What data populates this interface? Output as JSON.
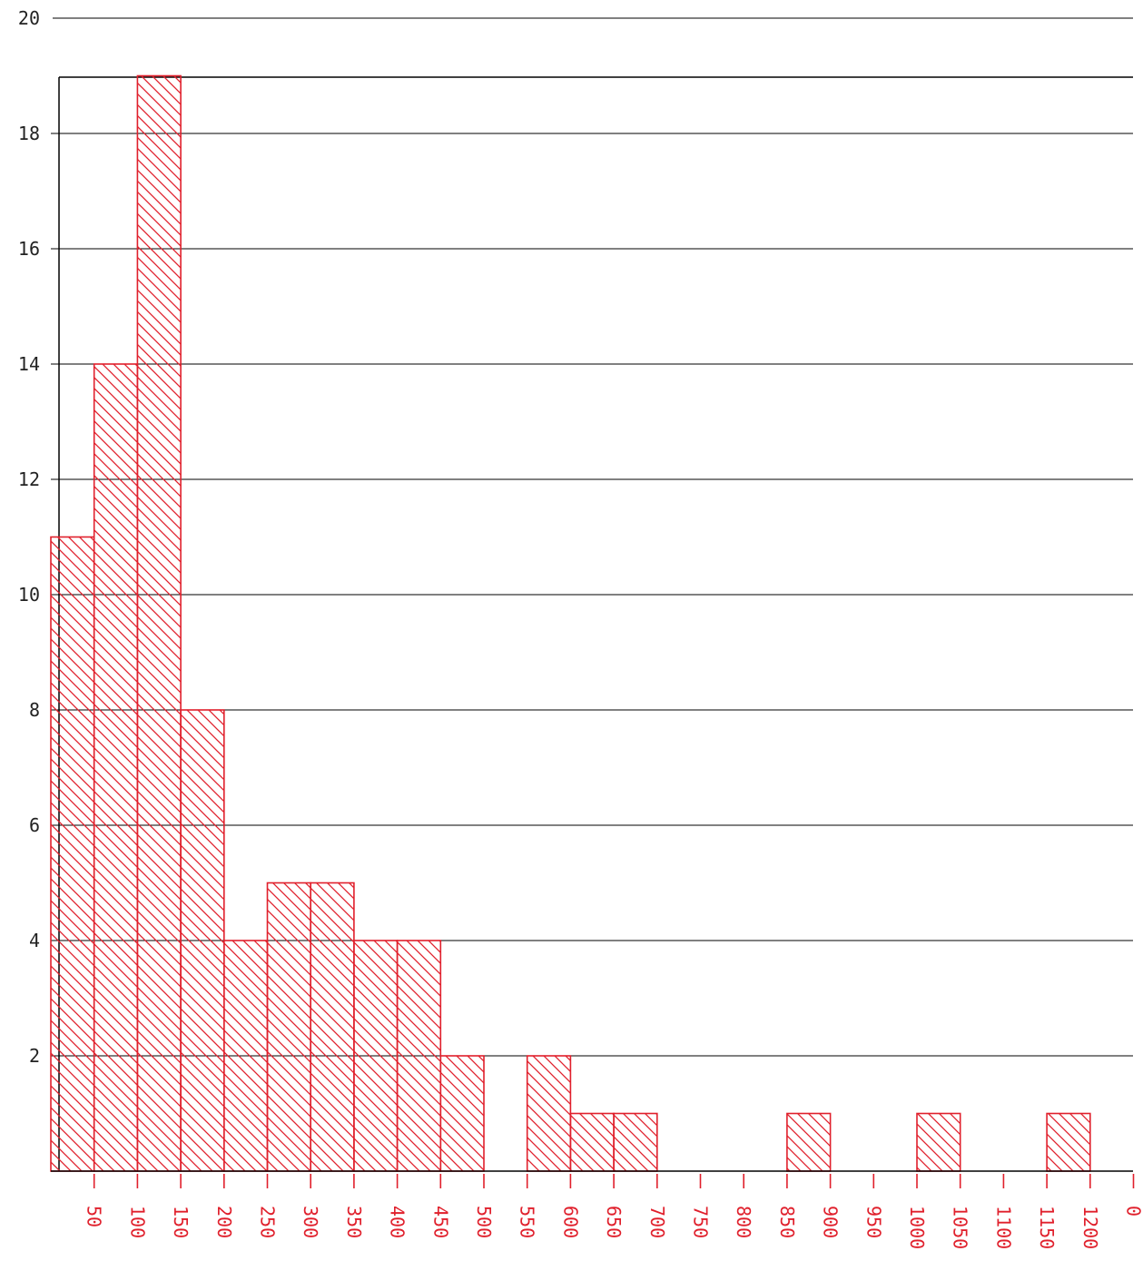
{
  "chart_data": {
    "type": "bar",
    "title": "",
    "xlabel": "",
    "ylabel": "",
    "bin_width": 50,
    "x_tick_labels": [
      "50",
      "100",
      "150",
      "200",
      "250",
      "300",
      "350",
      "400",
      "450",
      "500",
      "550",
      "600",
      "650",
      "700",
      "750",
      "800",
      "850",
      "900",
      "950",
      "1000",
      "1050",
      "1100",
      "1150",
      "1200",
      "0"
    ],
    "y_tick_labels": [
      "2",
      "4",
      "6",
      "8",
      "10",
      "12",
      "14",
      "16",
      "18",
      "20"
    ],
    "ylim": [
      0,
      20
    ],
    "grid": true,
    "bins": [
      {
        "start": 0,
        "end": 50,
        "value": 11
      },
      {
        "start": 50,
        "end": 100,
        "value": 14
      },
      {
        "start": 100,
        "end": 150,
        "value": 19
      },
      {
        "start": 150,
        "end": 200,
        "value": 8
      },
      {
        "start": 200,
        "end": 250,
        "value": 4
      },
      {
        "start": 250,
        "end": 300,
        "value": 5
      },
      {
        "start": 300,
        "end": 350,
        "value": 5
      },
      {
        "start": 350,
        "end": 400,
        "value": 4
      },
      {
        "start": 400,
        "end": 450,
        "value": 4
      },
      {
        "start": 450,
        "end": 500,
        "value": 2
      },
      {
        "start": 500,
        "end": 550,
        "value": 0
      },
      {
        "start": 550,
        "end": 600,
        "value": 2
      },
      {
        "start": 600,
        "end": 650,
        "value": 1
      },
      {
        "start": 650,
        "end": 700,
        "value": 1
      },
      {
        "start": 700,
        "end": 750,
        "value": 0
      },
      {
        "start": 750,
        "end": 800,
        "value": 0
      },
      {
        "start": 800,
        "end": 850,
        "value": 0
      },
      {
        "start": 850,
        "end": 900,
        "value": 1
      },
      {
        "start": 900,
        "end": 950,
        "value": 0
      },
      {
        "start": 950,
        "end": 1000,
        "value": 0
      },
      {
        "start": 1000,
        "end": 1050,
        "value": 1
      },
      {
        "start": 1050,
        "end": 1100,
        "value": 0
      },
      {
        "start": 1100,
        "end": 1150,
        "value": 0
      },
      {
        "start": 1150,
        "end": 1200,
        "value": 1
      }
    ],
    "colors": {
      "bars": "#e0202c",
      "axes": "#000000",
      "grid": "#000000",
      "x_tick_labels": "#e0202c",
      "y_tick_labels": "#222222"
    }
  }
}
